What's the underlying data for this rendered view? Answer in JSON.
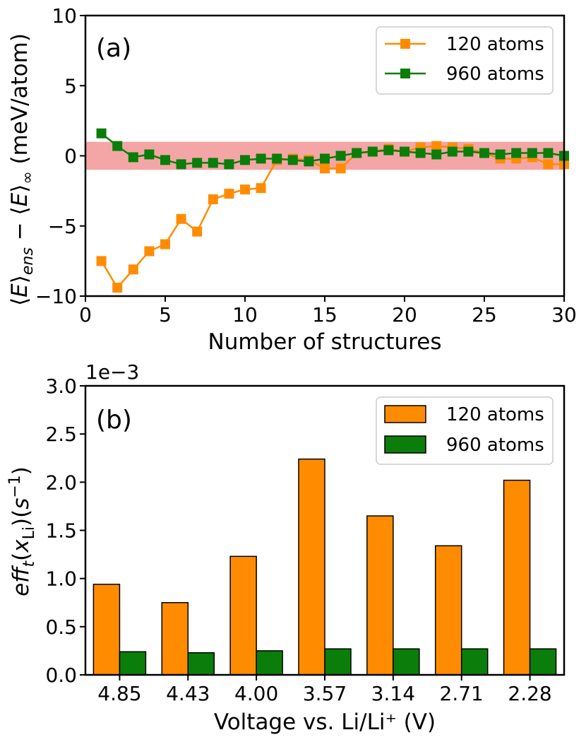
{
  "chart_data": [
    {
      "type": "line",
      "panel_label": "(a)",
      "xlabel": "Number of structures",
      "ylabel": "⟨E⟩ens − ⟨E⟩∞ (meV/atom)",
      "xlim": [
        0,
        30
      ],
      "ylim": [
        -10,
        10
      ],
      "x_ticks": [
        "0",
        "5",
        "10",
        "15",
        "20",
        "25",
        "30"
      ],
      "y_ticks": [
        "−10",
        "−5",
        "0",
        "5",
        "10"
      ],
      "legend_position": "top-right",
      "band": {
        "from": -1,
        "to": 1,
        "color": "#f4a6a6"
      },
      "x": [
        1,
        2,
        3,
        4,
        5,
        6,
        7,
        8,
        9,
        10,
        11,
        12,
        13,
        14,
        15,
        16,
        17,
        18,
        19,
        20,
        21,
        22,
        23,
        24,
        25,
        26,
        27,
        28,
        29,
        30
      ],
      "series": [
        {
          "name": "120 atoms",
          "color": "#ff8c00",
          "values": [
            -7.5,
            -9.4,
            -8.1,
            -6.8,
            -6.3,
            -4.5,
            -5.4,
            -3.1,
            -2.7,
            -2.4,
            -2.3,
            -0.3,
            -0.2,
            -0.3,
            -0.9,
            -0.9,
            0.2,
            0.3,
            0.5,
            0.3,
            0.6,
            0.7,
            0.6,
            0.5,
            0.2,
            -0.2,
            -0.2,
            -0.1,
            -0.6,
            -0.6
          ]
        },
        {
          "name": "960 atoms",
          "color": "#0a7d0a",
          "values": [
            1.6,
            0.7,
            -0.1,
            0.1,
            -0.3,
            -0.6,
            -0.5,
            -0.5,
            -0.6,
            -0.3,
            -0.2,
            -0.2,
            -0.3,
            -0.4,
            -0.2,
            0.0,
            0.2,
            0.3,
            0.4,
            0.3,
            0.2,
            0.1,
            0.3,
            0.3,
            0.2,
            0.1,
            0.2,
            0.2,
            0.2,
            0.0
          ]
        }
      ]
    },
    {
      "type": "bar",
      "panel_label": "(b)",
      "xlabel": "Voltage vs. Li/Li⁺ (V)",
      "ylabel": "eff_t(x_Li)(s⁻¹)",
      "offset_text": "1e−3",
      "ylim": [
        0,
        3.0
      ],
      "y_ticks": [
        "0.0",
        "0.5",
        "1.0",
        "1.5",
        "2.0",
        "2.5",
        "3.0"
      ],
      "legend_position": "top-right",
      "categories": [
        "4.85",
        "4.43",
        "4.00",
        "3.57",
        "3.14",
        "2.71",
        "2.28"
      ],
      "series": [
        {
          "name": "120 atoms",
          "color": "#ff8c00",
          "values": [
            0.94,
            0.75,
            1.23,
            2.24,
            1.65,
            1.34,
            2.02
          ]
        },
        {
          "name": "960 atoms",
          "color": "#0a7d0a",
          "values": [
            0.24,
            0.23,
            0.25,
            0.27,
            0.27,
            0.27,
            0.27
          ]
        }
      ]
    }
  ]
}
